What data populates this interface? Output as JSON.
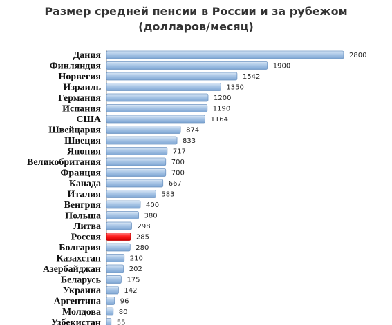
{
  "chart_data": {
    "type": "bar",
    "orientation": "horizontal",
    "title_line1": "Размер средней пенсии в России и за рубежом",
    "title_line2": "(долларов/месяц)",
    "categories": [
      "Дания",
      "Финляндия",
      "Норвегия",
      "Израиль",
      "Германия",
      "Испания",
      "США",
      "Швейцария",
      "Швеция",
      "Япония",
      "Великобритания",
      "Франция",
      "Канада",
      "Италия",
      "Венгрия",
      "Польша",
      "Литва",
      "Россия",
      "Болгария",
      "Казахстан",
      "Азербайджан",
      "Беларусь",
      "Украина",
      "Аргентина",
      "Молдова",
      "Узбекистан"
    ],
    "values": [
      2800,
      1900,
      1542,
      1350,
      1200,
      1190,
      1164,
      874,
      833,
      717,
      700,
      700,
      667,
      583,
      400,
      380,
      298,
      285,
      280,
      210,
      202,
      175,
      142,
      96,
      80,
      55
    ],
    "highlight_category": "Россия",
    "colors": {
      "bar": "#9dbde0",
      "bar_edge": "#6f95c2",
      "highlight": "#ff1a1a",
      "highlight_edge": "#c00000"
    },
    "grid": false,
    "legend": "none"
  }
}
